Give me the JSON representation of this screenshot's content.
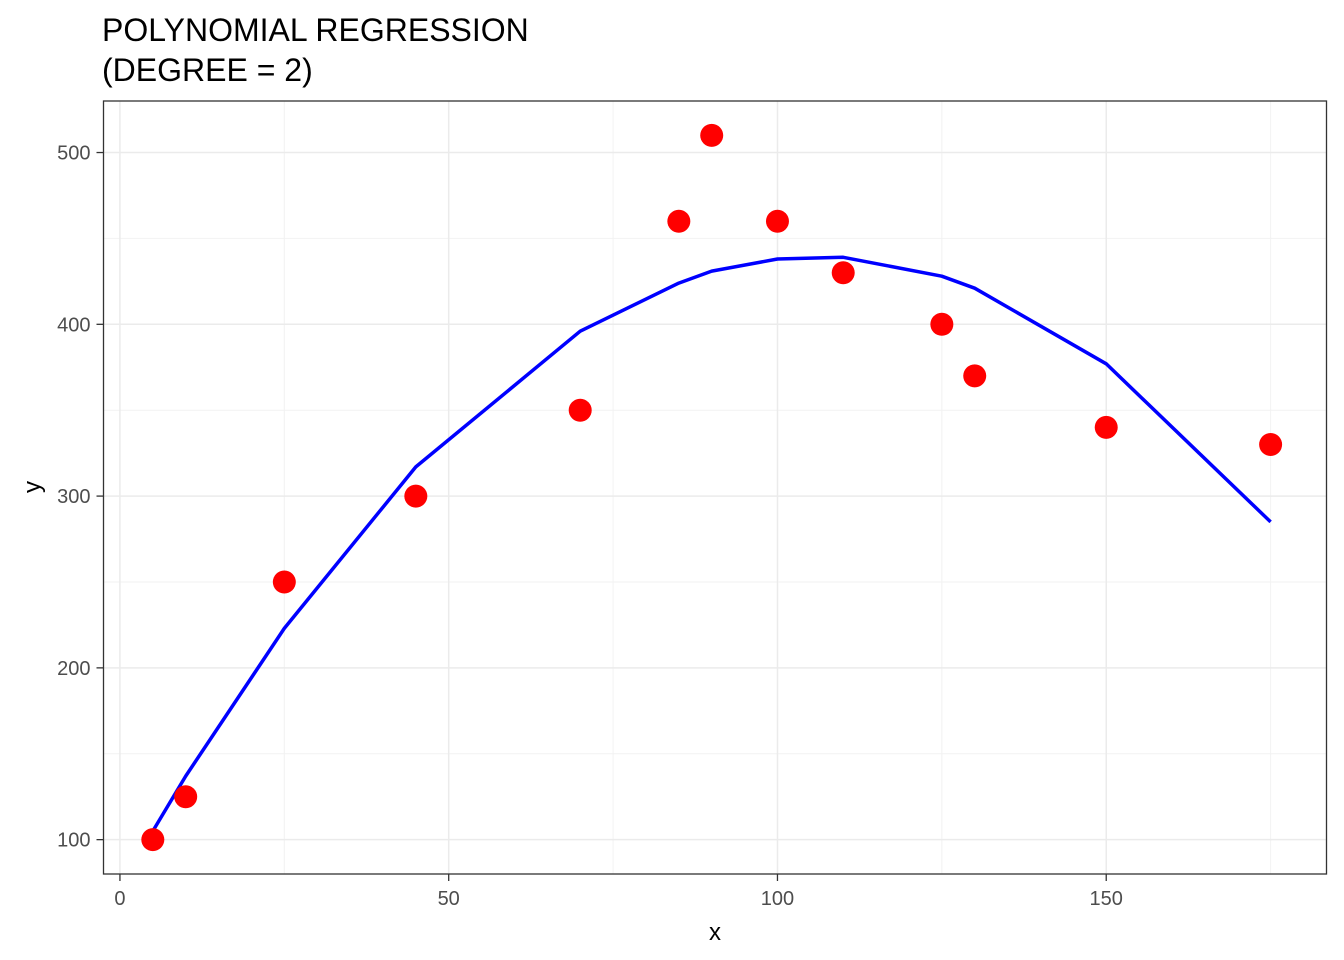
{
  "chart_data": {
    "type": "scatter",
    "title_lines": [
      "POLYNOMIAL REGRESSION",
      "(DEGREE = 2)"
    ],
    "xlabel": "x",
    "ylabel": "y",
    "xlim": [
      -2.5,
      183.5
    ],
    "ylim": [
      80,
      530
    ],
    "x_ticks": [
      0,
      50,
      100,
      150
    ],
    "y_ticks": [
      100,
      200,
      300,
      400,
      500
    ],
    "grid": true,
    "points": {
      "color": "#ff0000",
      "x": [
        5,
        10,
        25,
        45,
        70,
        85,
        90,
        100,
        110,
        125,
        130,
        150,
        175
      ],
      "y": [
        100,
        125,
        250,
        300,
        350,
        460,
        510,
        460,
        430,
        400,
        370,
        340,
        330
      ]
    },
    "fit_line": {
      "color": "#0000ff",
      "x": [
        5,
        10,
        25,
        45,
        70,
        85,
        90,
        100,
        110,
        125,
        130,
        150,
        175
      ],
      "y": [
        105,
        137,
        223,
        317,
        396,
        424,
        431,
        438,
        439,
        428,
        421,
        377,
        285
      ]
    }
  }
}
